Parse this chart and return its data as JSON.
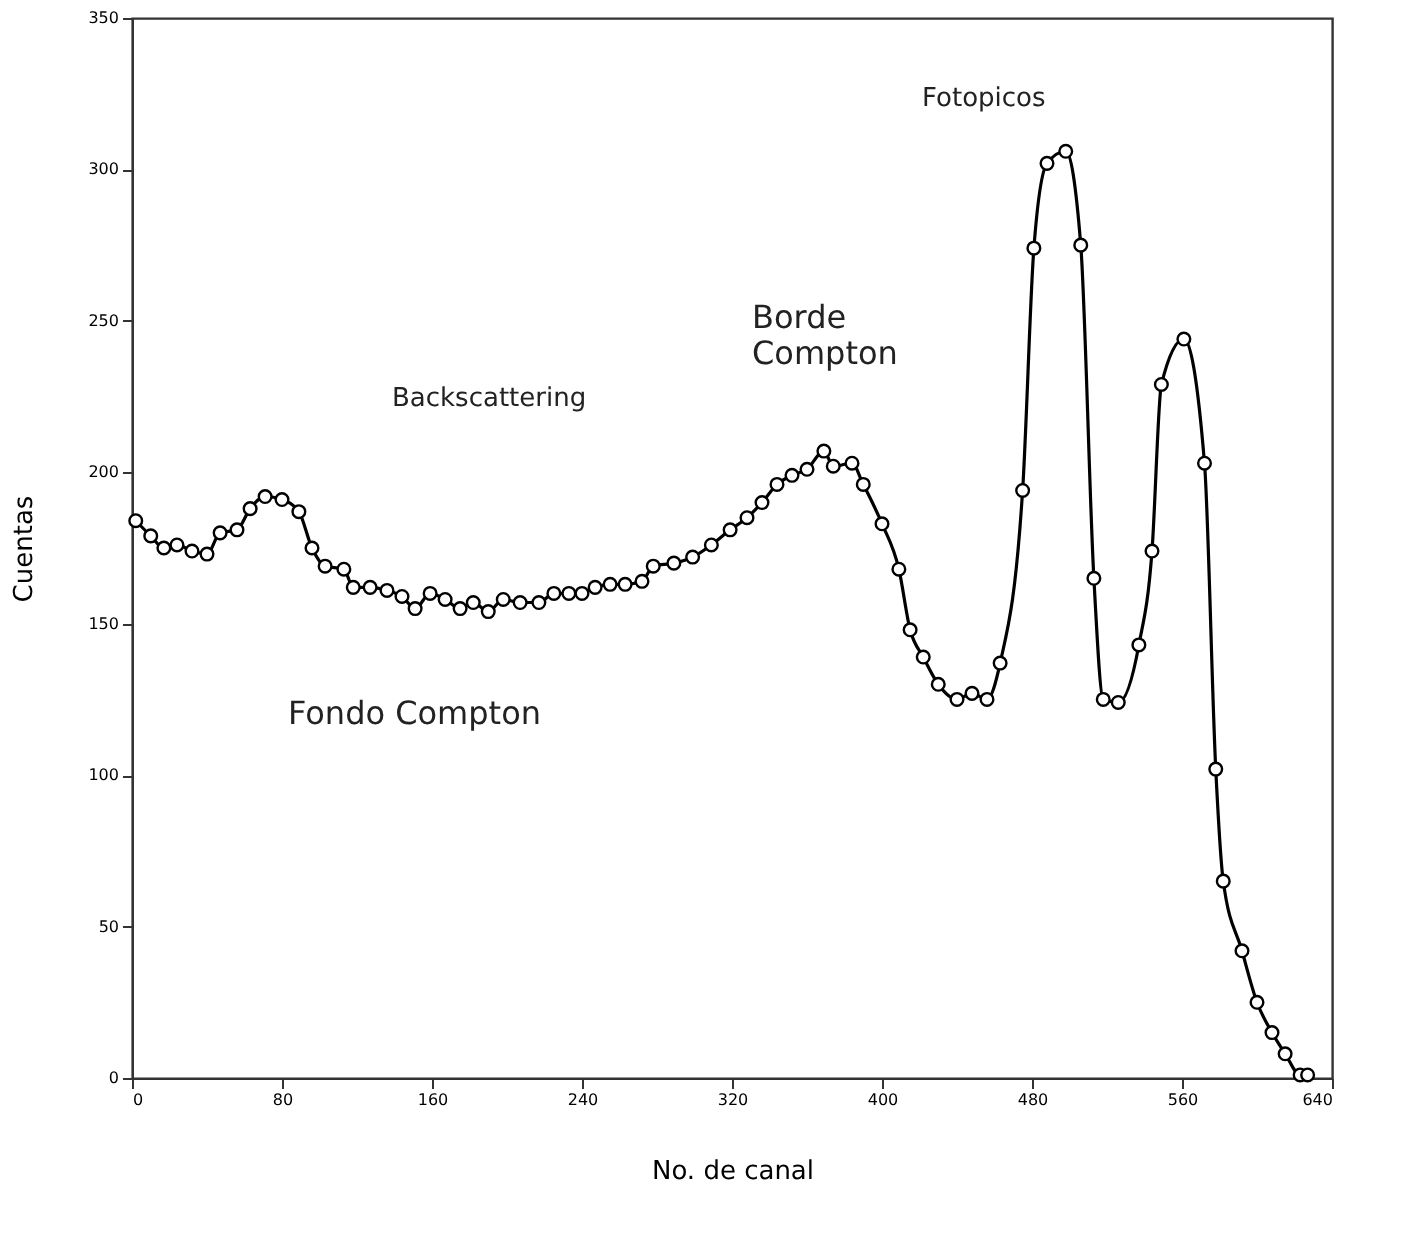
{
  "chart_data": {
    "type": "line",
    "xlabel": "No. de canal",
    "ylabel": "Cuentas",
    "xlim": [
      0,
      640
    ],
    "ylim": [
      0,
      350
    ],
    "xticks": [
      0,
      80,
      160,
      240,
      320,
      400,
      480,
      560,
      640
    ],
    "yticks": [
      0,
      50,
      100,
      150,
      200,
      250,
      300,
      350
    ],
    "grid": false,
    "marker": "circle",
    "line_style": "solid",
    "x": [
      2,
      10,
      17,
      24,
      32,
      40,
      47,
      56,
      63,
      71,
      80,
      89,
      96,
      103,
      113,
      118,
      127,
      136,
      144,
      151,
      159,
      167,
      175,
      182,
      190,
      198,
      207,
      217,
      225,
      233,
      240,
      247,
      255,
      263,
      272,
      278,
      289,
      299,
      309,
      319,
      328,
      336,
      344,
      352,
      360,
      369,
      374,
      384,
      390,
      400,
      409,
      415,
      422,
      430,
      440,
      448,
      456,
      463,
      475,
      481,
      488,
      498,
      506,
      513,
      518,
      526,
      537,
      544,
      549,
      561,
      572,
      578,
      582,
      592,
      600,
      608,
      615,
      623,
      627
    ],
    "series": [
      {
        "color": "#000000",
        "values": [
          184,
          179,
          175,
          176,
          174,
          173,
          180,
          181,
          188,
          192,
          191,
          187,
          175,
          169,
          168,
          162,
          162,
          161,
          159,
          155,
          160,
          158,
          155,
          157,
          154,
          158,
          157,
          157,
          160,
          160,
          160,
          162,
          163,
          163,
          164,
          169,
          170,
          172,
          176,
          181,
          185,
          190,
          196,
          199,
          201,
          207,
          202,
          203,
          196,
          183,
          168,
          148,
          139,
          130,
          125,
          127,
          125,
          137,
          194,
          274,
          302,
          306,
          275,
          165,
          125,
          124,
          143,
          174,
          229,
          244,
          203,
          102,
          65,
          42,
          25,
          15,
          8,
          1,
          1
        ]
      }
    ],
    "annotations": [
      "Backscattering",
      "Borde Compton",
      "Fotopicos",
      "Fondo Compton"
    ]
  }
}
